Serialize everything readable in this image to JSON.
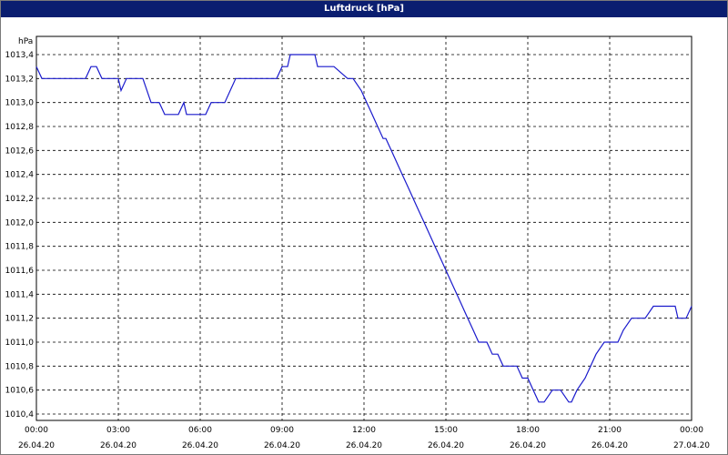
{
  "window": {
    "title": "Luftdruck [hPa]"
  },
  "chart_data": {
    "type": "line",
    "title": "Luftdruck [hPa]",
    "ylabel": "hPa",
    "xlabel": "",
    "ylim": [
      1010.4,
      1013.4
    ],
    "y_ticks": [
      "1013,4",
      "1013,2",
      "1013,0",
      "1012,8",
      "1012,6",
      "1012,4",
      "1012,2",
      "1012,0",
      "1011,8",
      "1011,6",
      "1011,4",
      "1011,2",
      "1011,0",
      "1010,8",
      "1010,6",
      "1010,4"
    ],
    "x_ticks": [
      {
        "time": "00:00",
        "date": "26.04.20"
      },
      {
        "time": "03:00",
        "date": "26.04.20"
      },
      {
        "time": "06:00",
        "date": "26.04.20"
      },
      {
        "time": "09:00",
        "date": "26.04.20"
      },
      {
        "time": "12:00",
        "date": "26.04.20"
      },
      {
        "time": "15:00",
        "date": "26.04.20"
      },
      {
        "time": "18:00",
        "date": "26.04.20"
      },
      {
        "time": "21:00",
        "date": "26.04.20"
      },
      {
        "time": "00:00",
        "date": "27.04.20"
      }
    ],
    "grid": true,
    "line_color": "#1a1acc",
    "series": [
      {
        "x_hours": [
          0,
          0.2,
          1.8,
          2.0,
          2.2,
          2.4,
          3.0,
          3.1,
          3.3,
          3.9,
          4.2,
          4.5,
          4.7,
          5.2,
          5.4,
          5.5,
          6.2,
          6.4,
          6.9,
          7.3,
          8.8,
          9.0,
          9.2,
          9.3,
          10.2,
          10.3,
          10.8,
          10.9,
          11.4,
          11.6,
          11.9,
          12.1,
          12.3,
          12.5,
          12.7,
          12.8,
          13.0,
          13.2,
          13.4,
          13.6,
          13.8,
          14.0,
          14.2,
          14.4,
          14.6,
          14.8,
          15.0,
          15.2,
          15.4,
          15.6,
          15.8,
          16.0,
          16.2,
          16.5,
          16.7,
          16.9,
          17.1,
          17.6,
          17.8,
          18.0,
          18.2,
          18.4,
          18.6,
          18.9,
          19.2,
          19.5,
          19.6,
          19.8,
          20.1,
          20.5,
          20.8,
          21.3,
          21.5,
          21.8,
          22.3,
          22.6,
          23.4,
          23.5,
          23.8,
          24.0
        ],
        "y": [
          1013.3,
          1013.2,
          1013.2,
          1013.3,
          1013.3,
          1013.2,
          1013.2,
          1013.1,
          1013.2,
          1013.2,
          1013.0,
          1013.0,
          1012.9,
          1012.9,
          1013.0,
          1012.9,
          1012.9,
          1013.0,
          1013.0,
          1013.2,
          1013.2,
          1013.3,
          1013.3,
          1013.4,
          1013.4,
          1013.3,
          1013.3,
          1013.3,
          1013.2,
          1013.2,
          1013.1,
          1013.0,
          1012.9,
          1012.8,
          1012.7,
          1012.7,
          1012.6,
          1012.5,
          1012.4,
          1012.3,
          1012.2,
          1012.1,
          1012.0,
          1011.9,
          1011.8,
          1011.7,
          1011.6,
          1011.5,
          1011.4,
          1011.3,
          1011.2,
          1011.1,
          1011.0,
          1011.0,
          1010.9,
          1010.9,
          1010.8,
          1010.8,
          1010.7,
          1010.7,
          1010.6,
          1010.5,
          1010.5,
          1010.6,
          1010.6,
          1010.5,
          1010.5,
          1010.6,
          1010.7,
          1010.9,
          1011.0,
          1011.0,
          1011.1,
          1011.2,
          1011.2,
          1011.3,
          1011.3,
          1011.2,
          1011.2,
          1011.3
        ]
      }
    ]
  }
}
